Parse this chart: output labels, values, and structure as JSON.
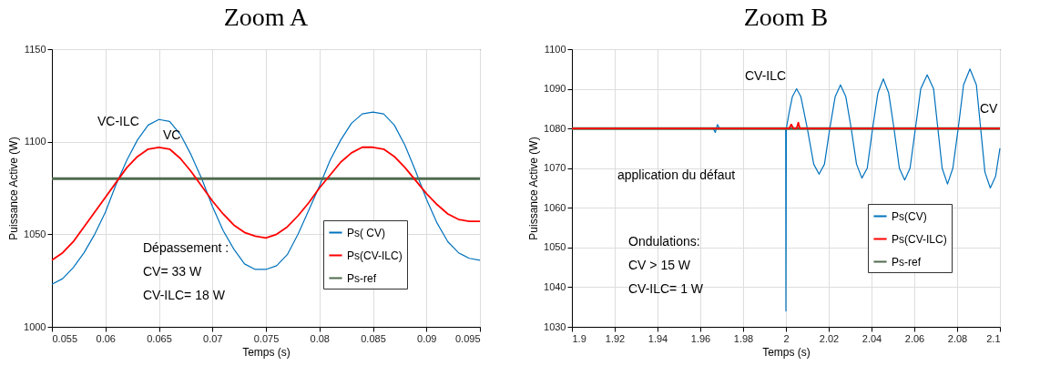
{
  "chart_data": [
    {
      "type": "line",
      "title": "Zoom A",
      "xlabel": "Temps (s)",
      "ylabel": "Puissance Active (W)",
      "xlim": [
        0.055,
        0.095
      ],
      "ylim": [
        1000,
        1150
      ],
      "xticks": [
        0.055,
        0.06,
        0.065,
        0.07,
        0.075,
        0.08,
        0.085,
        0.09,
        0.095
      ],
      "yticks": [
        1000,
        1050,
        1100,
        1150
      ],
      "grid": true,
      "legend": "bottom right",
      "x": [
        0.055,
        0.056,
        0.057,
        0.058,
        0.059,
        0.06,
        0.061,
        0.062,
        0.063,
        0.064,
        0.065,
        0.066,
        0.067,
        0.068,
        0.069,
        0.07,
        0.071,
        0.072,
        0.073,
        0.074,
        0.075,
        0.076,
        0.077,
        0.078,
        0.079,
        0.08,
        0.081,
        0.082,
        0.083,
        0.084,
        0.085,
        0.086,
        0.087,
        0.088,
        0.089,
        0.09,
        0.091,
        0.092,
        0.093,
        0.094,
        0.095
      ],
      "series": [
        {
          "name": "Ps( CV)",
          "color": "#0072bd",
          "values": [
            1023,
            1026,
            1032,
            1040,
            1050,
            1062,
            1077,
            1090,
            1101,
            1109,
            1112,
            1111,
            1104,
            1093,
            1080,
            1065,
            1052,
            1042,
            1034,
            1031,
            1031,
            1033,
            1039,
            1050,
            1063,
            1076,
            1090,
            1101,
            1110,
            1115,
            1116,
            1115,
            1109,
            1098,
            1084,
            1069,
            1056,
            1046,
            1040,
            1037,
            1036
          ]
        },
        {
          "name": "Ps(CV-ILC)",
          "color": "#ff0000",
          "values": [
            1036,
            1040,
            1046,
            1054,
            1062,
            1070,
            1078,
            1086,
            1092,
            1096,
            1097,
            1096,
            1091,
            1084,
            1076,
            1068,
            1061,
            1055,
            1051,
            1049,
            1048,
            1050,
            1054,
            1060,
            1067,
            1075,
            1082,
            1089,
            1094,
            1097,
            1097,
            1096,
            1092,
            1086,
            1079,
            1072,
            1066,
            1061,
            1058,
            1057,
            1057
          ]
        },
        {
          "name": "Ps-ref",
          "color": "#4f6b4f",
          "x": [
            0.055,
            0.095
          ],
          "values": [
            1080,
            1080
          ]
        }
      ],
      "annotations": [
        "VC-ILC",
        "VC",
        "Dépassement :",
        "CV= 33 W",
        "CV-ILC= 18 W"
      ]
    },
    {
      "type": "line",
      "title": "Zoom B",
      "xlabel": "Temps (s)",
      "ylabel": "Puissance Active (W)",
      "xlim": [
        1.9,
        2.1
      ],
      "ylim": [
        1030,
        1100
      ],
      "xticks": [
        1.9,
        1.92,
        1.94,
        1.96,
        1.98,
        2,
        2.02,
        2.04,
        2.06,
        2.08,
        2.1
      ],
      "yticks": [
        1030,
        1040,
        1050,
        1060,
        1070,
        1080,
        1090,
        1100
      ],
      "grid": true,
      "legend": "bottom right",
      "series": [
        {
          "name": "Ps(CV)",
          "color": "#0072bd",
          "x": [
            1.9,
            1.966,
            1.967,
            1.968,
            1.969,
            1.9999,
            2,
            2.0002,
            2.0015,
            2.003,
            2.005,
            2.007,
            2.01,
            2.013,
            2.0155,
            2.018,
            2.0205,
            2.023,
            2.0255,
            2.028,
            2.0305,
            2.033,
            2.0355,
            2.038,
            2.0405,
            2.043,
            2.0455,
            2.048,
            2.0505,
            2.053,
            2.0555,
            2.058,
            2.0605,
            2.063,
            2.066,
            2.069,
            2.071,
            2.073,
            2.0755,
            2.078,
            2.0805,
            2.083,
            2.086,
            2.089,
            2.091,
            2.093,
            2.0955,
            2.098,
            2.1
          ],
          "values": [
            1080,
            1080,
            1079,
            1081,
            1080,
            1080,
            1034,
            1080,
            1084,
            1088,
            1090,
            1088,
            1080,
            1071,
            1068.5,
            1071,
            1080,
            1088,
            1091,
            1088,
            1080,
            1071,
            1067.5,
            1070,
            1080,
            1089,
            1092.5,
            1089,
            1080,
            1070,
            1067,
            1070,
            1080,
            1090,
            1093.5,
            1090,
            1080,
            1070,
            1066,
            1070,
            1080,
            1091,
            1095,
            1091,
            1080,
            1069,
            1065,
            1068,
            1075
          ]
        },
        {
          "name": "Ps(CV-ILC)",
          "color": "#ff0000",
          "x": [
            1.9,
            2.0015,
            2.0025,
            2.0035,
            2.005,
            2.0058,
            2.0065,
            2.1
          ],
          "values": [
            1080,
            1080,
            1081,
            1080,
            1080,
            1081.5,
            1080,
            1080
          ]
        },
        {
          "name": "Ps-ref",
          "color": "#4f6b4f",
          "x": [
            1.9,
            2.1
          ],
          "values": [
            1080,
            1080
          ]
        }
      ],
      "annotations": [
        "CV-ILC",
        "application du défaut",
        "CV",
        "Ondulations:",
        "CV > 15 W",
        "CV-ILC= 1 W"
      ]
    }
  ]
}
